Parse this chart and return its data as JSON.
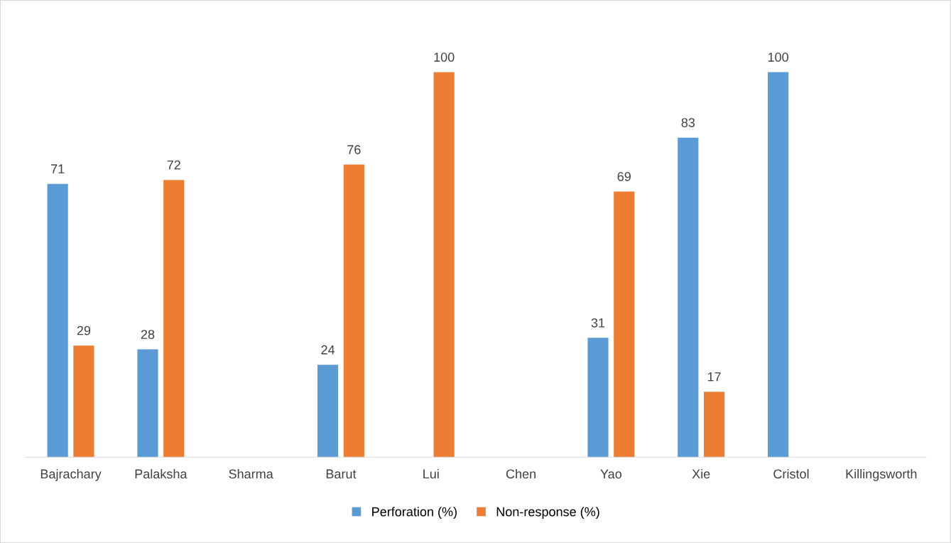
{
  "chart_data": {
    "type": "bar",
    "categories": [
      "Bajrachary",
      "Palaksha",
      "Sharma",
      "Barut",
      "Lui",
      "Chen",
      "Yao",
      "Xie",
      "Cristol",
      "Killingsworth"
    ],
    "series": [
      {
        "name": "Perforation (%)",
        "color": "#5b9bd5",
        "values": [
          71,
          28,
          null,
          24,
          null,
          null,
          31,
          83,
          100,
          null
        ]
      },
      {
        "name": "Non-response (%)",
        "color": "#ed7d31",
        "values": [
          29,
          72,
          null,
          76,
          100,
          null,
          69,
          17,
          null,
          null
        ]
      }
    ],
    "data_labels": true,
    "grid": false,
    "legend": "bottom"
  }
}
